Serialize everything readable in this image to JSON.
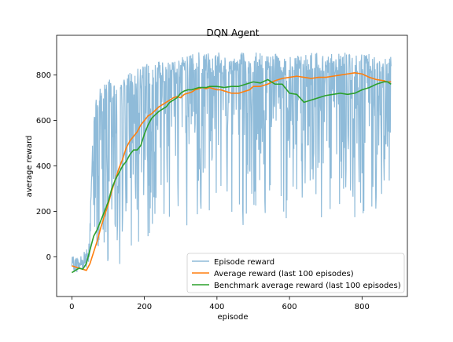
{
  "chart_data": {
    "type": "line",
    "title": "DQN Agent",
    "xlabel": "episode",
    "ylabel": "average reward",
    "xlim": [
      -42,
      925
    ],
    "ylim": [
      -175,
      975
    ],
    "xticks": [
      0,
      200,
      400,
      600,
      800
    ],
    "yticks": [
      0,
      200,
      400,
      600,
      800
    ],
    "grid": false,
    "legend_position": "lower-right",
    "colors": {
      "episode": "#1f77b4",
      "average": "#ff7f0e",
      "benchmark": "#2ca02c"
    },
    "series": [
      {
        "name": "Episode reward",
        "id": "episode",
        "kind": "noisy",
        "envelope": {
          "x": [
            0,
            20,
            40,
            50,
            60,
            80,
            100,
            120,
            150,
            200,
            250,
            300,
            350,
            400,
            500,
            600,
            700,
            800,
            880
          ],
          "low": [
            -80,
            -100,
            -80,
            -60,
            0,
            -60,
            -60,
            -60,
            0,
            30,
            50,
            100,
            180,
            100,
            150,
            170,
            130,
            150,
            270
          ],
          "high": [
            20,
            30,
            80,
            160,
            650,
            780,
            780,
            780,
            800,
            850,
            860,
            880,
            900,
            900,
            900,
            900,
            900,
            900,
            880
          ]
        }
      },
      {
        "name": "Average reward (last 100 episodes)",
        "id": "average",
        "x": [
          0,
          10,
          20,
          30,
          40,
          50,
          60,
          70,
          80,
          90,
          100,
          110,
          120,
          130,
          140,
          150,
          160,
          170,
          180,
          190,
          200,
          210,
          220,
          230,
          240,
          250,
          260,
          270,
          280,
          290,
          300,
          310,
          320,
          330,
          340,
          350,
          360,
          370,
          380,
          390,
          400,
          410,
          420,
          430,
          440,
          450,
          460,
          470,
          480,
          490,
          500,
          520,
          540,
          560,
          580,
          600,
          620,
          640,
          660,
          680,
          700,
          720,
          740,
          760,
          780,
          800,
          820,
          840,
          860,
          870,
          880
        ],
        "y": [
          -40,
          -45,
          -50,
          -55,
          -60,
          -30,
          20,
          70,
          130,
          180,
          230,
          290,
          340,
          390,
          430,
          480,
          510,
          530,
          550,
          580,
          600,
          620,
          630,
          645,
          660,
          670,
          680,
          690,
          700,
          705,
          700,
          715,
          720,
          725,
          735,
          740,
          745,
          740,
          745,
          740,
          735,
          735,
          730,
          725,
          720,
          720,
          720,
          725,
          730,
          735,
          750,
          750,
          760,
          775,
          785,
          790,
          795,
          790,
          785,
          790,
          790,
          795,
          800,
          805,
          810,
          805,
          790,
          780,
          775,
          770,
          770
        ]
      },
      {
        "name": "Benchmark average reward (last 100 episodes)",
        "id": "benchmark",
        "x": [
          0,
          10,
          20,
          30,
          40,
          50,
          60,
          70,
          80,
          90,
          100,
          110,
          120,
          130,
          140,
          150,
          160,
          170,
          180,
          190,
          200,
          210,
          220,
          230,
          240,
          250,
          260,
          270,
          280,
          290,
          300,
          310,
          320,
          330,
          340,
          350,
          360,
          370,
          380,
          390,
          400,
          420,
          440,
          460,
          480,
          500,
          520,
          540,
          560,
          580,
          600,
          620,
          640,
          660,
          680,
          700,
          720,
          740,
          760,
          780,
          800,
          820,
          840,
          860,
          870,
          880
        ],
        "y": [
          -70,
          -60,
          -50,
          -55,
          -30,
          30,
          90,
          120,
          160,
          200,
          240,
          300,
          340,
          370,
          400,
          420,
          450,
          470,
          470,
          490,
          540,
          580,
          610,
          625,
          640,
          650,
          660,
          680,
          690,
          700,
          720,
          730,
          735,
          735,
          740,
          745,
          745,
          745,
          750,
          750,
          750,
          745,
          750,
          750,
          760,
          770,
          765,
          780,
          760,
          760,
          720,
          715,
          680,
          690,
          700,
          710,
          715,
          720,
          715,
          720,
          735,
          745,
          760,
          770,
          770,
          760
        ]
      }
    ]
  }
}
